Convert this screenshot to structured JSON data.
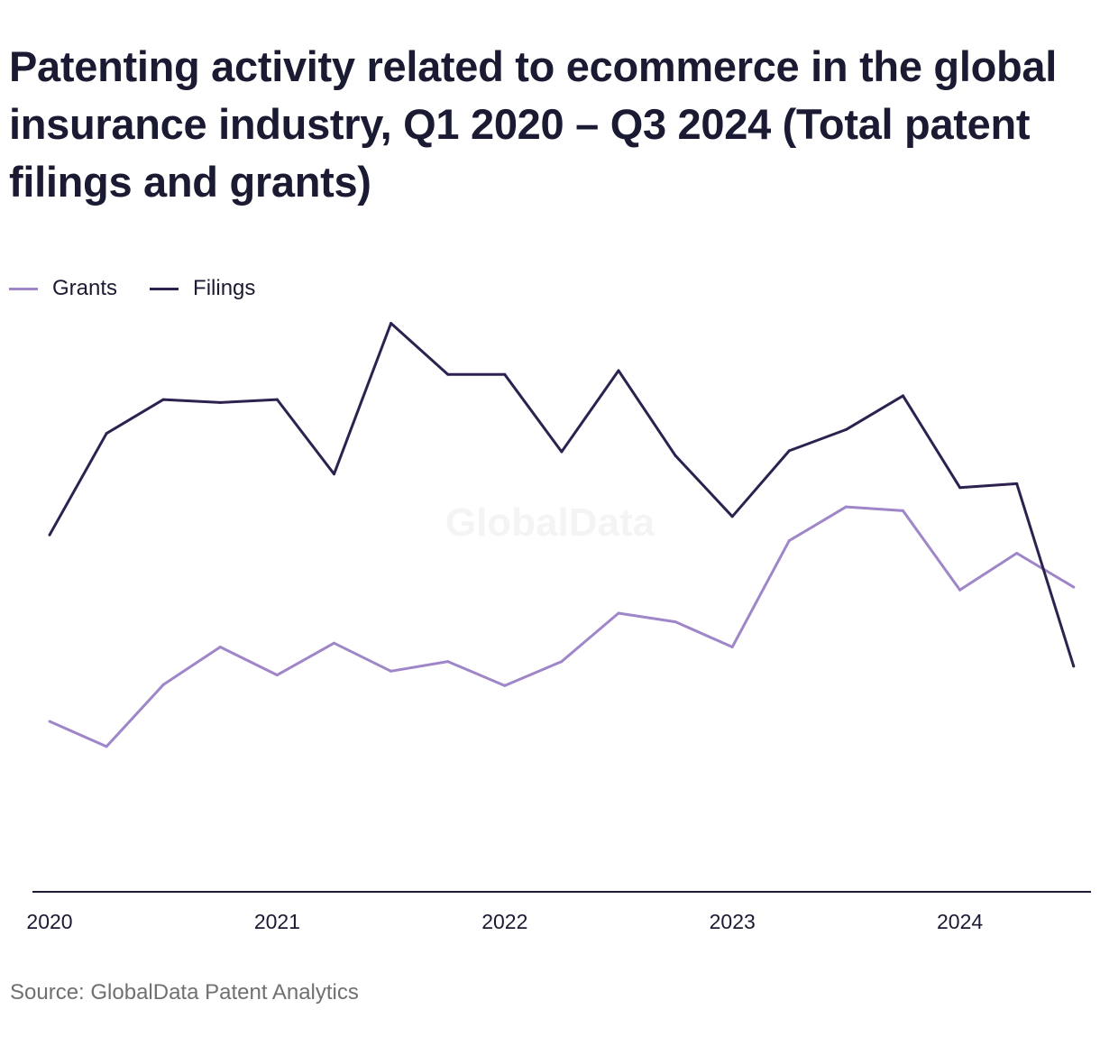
{
  "title": "Patenting activity related to ecommerce in the global insurance industry, Q1 2020 – Q3 2024 (Total patent filings and grants)",
  "watermark": "GlobalData",
  "source": "Source: GlobalData Patent Analytics",
  "colors": {
    "grants": "#9e86c8",
    "filings": "#2d2150",
    "axis": "#1b1a33",
    "text": "#1b1a33",
    "source": "#707070",
    "watermark": "#f4f4f4"
  },
  "legend": [
    {
      "name": "Grants",
      "color": "#9e86c8"
    },
    {
      "name": "Filings",
      "color": "#2d2150"
    }
  ],
  "chart_data": {
    "type": "line",
    "title": "Patenting activity related to ecommerce in the global insurance industry, Q1 2020 – Q3 2024 (Total patent filings and grants)",
    "xlabel": "",
    "ylabel": "",
    "x": [
      "Q1 2020",
      "Q2 2020",
      "Q3 2020",
      "Q4 2020",
      "Q1 2021",
      "Q2 2021",
      "Q3 2021",
      "Q4 2021",
      "Q1 2022",
      "Q2 2022",
      "Q3 2022",
      "Q4 2022",
      "Q1 2023",
      "Q2 2023",
      "Q3 2023",
      "Q4 2023",
      "Q1 2024",
      "Q2 2024",
      "Q3 2024"
    ],
    "x_tick_labels": [
      "2020",
      "2021",
      "2022",
      "2023",
      "2024"
    ],
    "ylim": [
      0,
      600
    ],
    "y_axis_visible": false,
    "grid": false,
    "legend_position": "top-left",
    "series": [
      {
        "name": "Grants",
        "values": [
          188,
          162,
          226,
          265,
          236,
          269,
          240,
          250,
          225,
          250,
          300,
          291,
          265,
          375,
          410,
          406,
          324,
          362,
          327
        ]
      },
      {
        "name": "Filings",
        "values": [
          381,
          486,
          521,
          518,
          521,
          444,
          600,
          547,
          547,
          467,
          551,
          463,
          400,
          468,
          490,
          525,
          430,
          434,
          245
        ]
      }
    ]
  }
}
